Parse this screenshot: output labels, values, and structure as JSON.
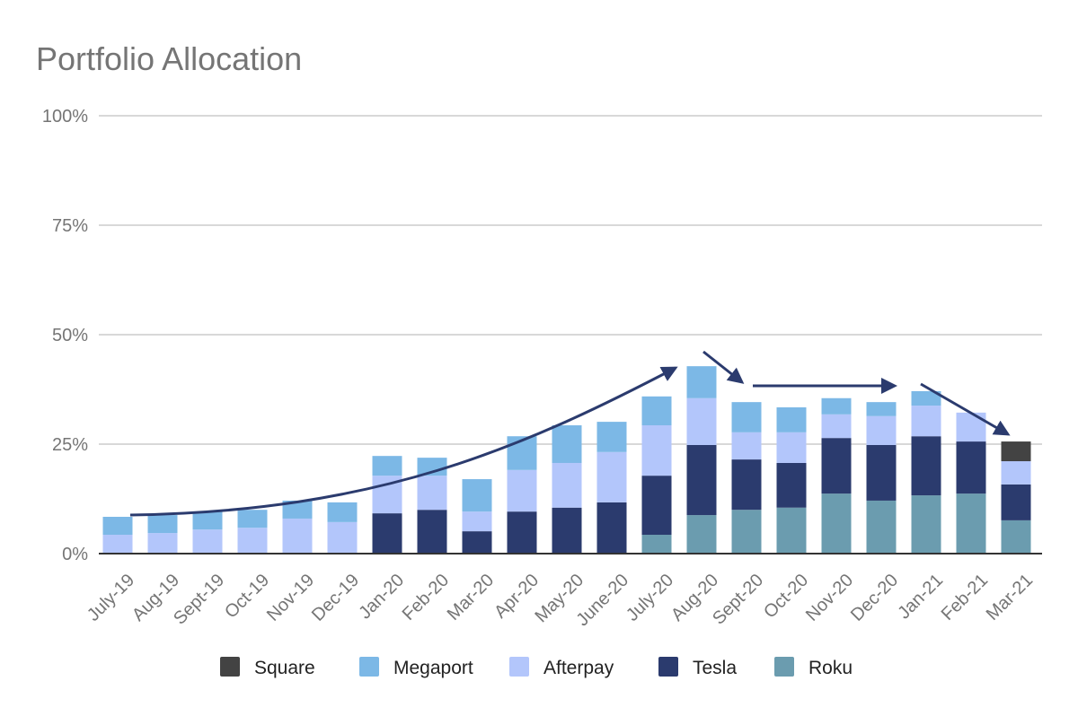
{
  "chart_data": {
    "type": "bar",
    "stacked": true,
    "title": "Portfolio Allocation",
    "xlabel": "",
    "ylabel": "",
    "ylim": [
      0,
      100
    ],
    "yticks": [
      "0%",
      "25%",
      "50%",
      "75%",
      "100%"
    ],
    "ytick_values": [
      0,
      25,
      50,
      75,
      100
    ],
    "grid": true,
    "legend_position": "bottom",
    "categories": [
      "July-19",
      "Aug-19",
      "Sept-19",
      "Oct-19",
      "Nov-19",
      "Dec-19",
      "Jan-20",
      "Feb-20",
      "Mar-20",
      "Apr-20",
      "May-20",
      "June-20",
      "July-20",
      "Aug-20",
      "Sept-20",
      "Oct-20",
      "Nov-20",
      "Dec-20",
      "Jan-21",
      "Feb-21",
      "Mar-21"
    ],
    "series": [
      {
        "name": "Roku",
        "color": "#6b9caf",
        "values": [
          0,
          0,
          0,
          0,
          0,
          0,
          0,
          0,
          0,
          0,
          0,
          0,
          4.3,
          8.8,
          10.0,
          10.5,
          13.7,
          12.1,
          13.3,
          13.7,
          7.6
        ]
      },
      {
        "name": "Tesla",
        "color": "#2b3b6e",
        "values": [
          0,
          0,
          0,
          0,
          0,
          0,
          9.2,
          10.0,
          5.1,
          9.6,
          10.5,
          11.7,
          13.5,
          16.0,
          11.5,
          10.2,
          12.7,
          12.7,
          13.5,
          11.9,
          8.2
        ]
      },
      {
        "name": "Afterpay",
        "color": "#b3c6fb",
        "values": [
          4.3,
          4.7,
          5.5,
          5.9,
          8.0,
          7.2,
          8.6,
          7.8,
          4.5,
          9.5,
          10.2,
          11.5,
          11.5,
          10.7,
          6.2,
          7.0,
          5.4,
          6.6,
          7.0,
          6.6,
          5.3
        ]
      },
      {
        "name": "Megaport",
        "color": "#7cb8e6",
        "values": [
          4.1,
          4.1,
          4.1,
          4.1,
          4.1,
          4.5,
          4.5,
          4.1,
          7.4,
          7.7,
          8.6,
          6.9,
          6.6,
          7.3,
          6.9,
          5.7,
          3.7,
          3.2,
          3.3,
          0,
          0
        ]
      },
      {
        "name": "Square",
        "color": "#434343",
        "values": [
          0,
          0,
          0,
          0,
          0,
          0,
          0,
          0,
          0,
          0,
          0,
          0,
          0,
          0,
          0,
          0,
          0,
          0,
          0,
          0,
          4.5
        ]
      }
    ],
    "legend_order": [
      "Square",
      "Megaport",
      "Afterpay",
      "Tesla",
      "Roku"
    ],
    "annotations": {
      "arrow_color": "#2b3b6e",
      "arrows": [
        {
          "type": "curve-up",
          "from": "July-19",
          "to": "Aug-20"
        },
        {
          "type": "down",
          "from": "Aug-20",
          "to": "Sept-20"
        },
        {
          "type": "flat",
          "from": "Sept-20",
          "to": "Jan-21"
        },
        {
          "type": "down",
          "from": "Jan-21",
          "to": "Mar-21"
        }
      ]
    }
  }
}
